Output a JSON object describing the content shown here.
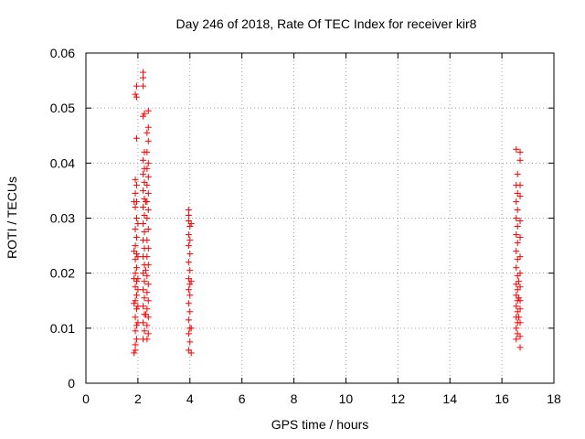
{
  "chart_data": {
    "type": "scatter",
    "title": "Day 246 of 2018, Rate Of TEC Index for receiver kir8",
    "xlabel": "GPS time / hours",
    "ylabel": "ROTI / TECUs",
    "xlim": [
      0,
      18
    ],
    "ylim": [
      0,
      0.06
    ],
    "xticks": [
      0,
      2,
      4,
      6,
      8,
      10,
      12,
      14,
      16,
      18
    ],
    "xtick_labels": [
      "0",
      "2",
      "4",
      "6",
      "8",
      "10",
      "12",
      "14",
      "16",
      "18"
    ],
    "yticks": [
      0,
      0.01,
      0.02,
      0.03,
      0.04,
      0.05,
      0.06
    ],
    "ytick_labels": [
      "0",
      "0.01",
      "0.02",
      "0.03",
      "0.04",
      "0.05",
      "0.06"
    ],
    "grid": true,
    "marker": "+",
    "color": "#ff0000",
    "series": [
      {
        "name": "ROTI",
        "points": [
          [
            1.9,
            0.006
          ],
          [
            1.9,
            0.007
          ],
          [
            1.95,
            0.008
          ],
          [
            1.9,
            0.0095
          ],
          [
            1.95,
            0.0105
          ],
          [
            1.9,
            0.012
          ],
          [
            1.95,
            0.0135
          ],
          [
            1.9,
            0.015
          ],
          [
            1.95,
            0.016
          ],
          [
            1.9,
            0.0175
          ],
          [
            1.95,
            0.0185
          ],
          [
            1.9,
            0.02
          ],
          [
            1.95,
            0.021
          ],
          [
            1.9,
            0.0225
          ],
          [
            1.95,
            0.0235
          ],
          [
            1.9,
            0.025
          ],
          [
            1.95,
            0.0265
          ],
          [
            1.9,
            0.028
          ],
          [
            1.95,
            0.03
          ],
          [
            1.9,
            0.032
          ],
          [
            1.95,
            0.033
          ],
          [
            1.9,
            0.0345
          ],
          [
            1.95,
            0.036
          ],
          [
            1.9,
            0.037
          ],
          [
            1.95,
            0.0445
          ],
          [
            1.95,
            0.052
          ],
          [
            1.9,
            0.0525
          ],
          [
            1.95,
            0.054
          ],
          [
            1.85,
            0.0055
          ],
          [
            1.85,
            0.0145
          ],
          [
            1.85,
            0.019
          ],
          [
            1.85,
            0.024
          ],
          [
            1.85,
            0.033
          ],
          [
            2.0,
            0.011
          ],
          [
            2.0,
            0.017
          ],
          [
            2.0,
            0.023
          ],
          [
            2.0,
            0.029
          ],
          [
            2.0,
            0.019
          ],
          [
            2.0,
            0.014
          ],
          [
            2.2,
            0.008
          ],
          [
            2.25,
            0.0095
          ],
          [
            2.2,
            0.011
          ],
          [
            2.25,
            0.0125
          ],
          [
            2.2,
            0.014
          ],
          [
            2.25,
            0.0155
          ],
          [
            2.2,
            0.017
          ],
          [
            2.25,
            0.0185
          ],
          [
            2.2,
            0.02
          ],
          [
            2.25,
            0.0215
          ],
          [
            2.2,
            0.023
          ],
          [
            2.25,
            0.0245
          ],
          [
            2.2,
            0.026
          ],
          [
            2.25,
            0.0275
          ],
          [
            2.2,
            0.029
          ],
          [
            2.25,
            0.0305
          ],
          [
            2.2,
            0.032
          ],
          [
            2.25,
            0.0335
          ],
          [
            2.2,
            0.035
          ],
          [
            2.25,
            0.0365
          ],
          [
            2.2,
            0.038
          ],
          [
            2.25,
            0.039
          ],
          [
            2.2,
            0.0405
          ],
          [
            2.25,
            0.042
          ],
          [
            2.2,
            0.0485
          ],
          [
            2.25,
            0.049
          ],
          [
            2.2,
            0.054
          ],
          [
            2.2,
            0.0555
          ],
          [
            2.2,
            0.0565
          ],
          [
            2.35,
            0.008
          ],
          [
            2.4,
            0.009
          ],
          [
            2.35,
            0.0105
          ],
          [
            2.4,
            0.012
          ],
          [
            2.35,
            0.0135
          ],
          [
            2.4,
            0.015
          ],
          [
            2.35,
            0.0165
          ],
          [
            2.4,
            0.018
          ],
          [
            2.35,
            0.0195
          ],
          [
            2.4,
            0.0215
          ],
          [
            2.35,
            0.023
          ],
          [
            2.4,
            0.0245
          ],
          [
            2.35,
            0.026
          ],
          [
            2.4,
            0.028
          ],
          [
            2.35,
            0.03
          ],
          [
            2.4,
            0.0315
          ],
          [
            2.35,
            0.033
          ],
          [
            2.4,
            0.0345
          ],
          [
            2.35,
            0.036
          ],
          [
            2.4,
            0.0375
          ],
          [
            2.35,
            0.039
          ],
          [
            2.4,
            0.04
          ],
          [
            2.35,
            0.042
          ],
          [
            2.4,
            0.044
          ],
          [
            2.35,
            0.0455
          ],
          [
            2.4,
            0.0465
          ],
          [
            2.4,
            0.0495
          ],
          [
            2.3,
            0.0125
          ],
          [
            2.3,
            0.0205
          ],
          [
            2.3,
            0.033
          ],
          [
            3.95,
            0.006
          ],
          [
            4.0,
            0.0075
          ],
          [
            3.95,
            0.009
          ],
          [
            4.0,
            0.01
          ],
          [
            3.95,
            0.0115
          ],
          [
            4.0,
            0.013
          ],
          [
            3.95,
            0.0145
          ],
          [
            4.0,
            0.016
          ],
          [
            3.95,
            0.017
          ],
          [
            4.0,
            0.018
          ],
          [
            3.95,
            0.019
          ],
          [
            4.0,
            0.0205
          ],
          [
            3.95,
            0.022
          ],
          [
            4.0,
            0.0235
          ],
          [
            3.95,
            0.025
          ],
          [
            4.0,
            0.026
          ],
          [
            3.95,
            0.027
          ],
          [
            4.0,
            0.0285
          ],
          [
            3.95,
            0.0295
          ],
          [
            4.05,
            0.029
          ],
          [
            3.95,
            0.0305
          ],
          [
            3.95,
            0.0315
          ],
          [
            4.05,
            0.0185
          ],
          [
            4.05,
            0.01
          ],
          [
            4.05,
            0.0055
          ],
          [
            16.55,
            0.008
          ],
          [
            16.6,
            0.009
          ],
          [
            16.55,
            0.01
          ],
          [
            16.6,
            0.011
          ],
          [
            16.55,
            0.012
          ],
          [
            16.6,
            0.013
          ],
          [
            16.55,
            0.014
          ],
          [
            16.6,
            0.015
          ],
          [
            16.55,
            0.016
          ],
          [
            16.6,
            0.017
          ],
          [
            16.55,
            0.018
          ],
          [
            16.6,
            0.0195
          ],
          [
            16.55,
            0.021
          ],
          [
            16.6,
            0.0225
          ],
          [
            16.55,
            0.024
          ],
          [
            16.6,
            0.0255
          ],
          [
            16.55,
            0.027
          ],
          [
            16.6,
            0.0285
          ],
          [
            16.55,
            0.03
          ],
          [
            16.6,
            0.0315
          ],
          [
            16.55,
            0.033
          ],
          [
            16.6,
            0.0345
          ],
          [
            16.55,
            0.036
          ],
          [
            16.6,
            0.038
          ],
          [
            16.55,
            0.0425
          ],
          [
            16.7,
            0.0065
          ],
          [
            16.7,
            0.0085
          ],
          [
            16.7,
            0.011
          ],
          [
            16.7,
            0.0135
          ],
          [
            16.7,
            0.015
          ],
          [
            16.7,
            0.0175
          ],
          [
            16.7,
            0.02
          ],
          [
            16.7,
            0.023
          ],
          [
            16.7,
            0.0265
          ],
          [
            16.7,
            0.0295
          ],
          [
            16.7,
            0.034
          ],
          [
            16.7,
            0.036
          ],
          [
            16.7,
            0.0405
          ],
          [
            16.7,
            0.042
          ],
          [
            16.65,
            0.0155
          ],
          [
            16.65,
            0.012
          ],
          [
            16.65,
            0.0185
          ]
        ]
      }
    ]
  }
}
